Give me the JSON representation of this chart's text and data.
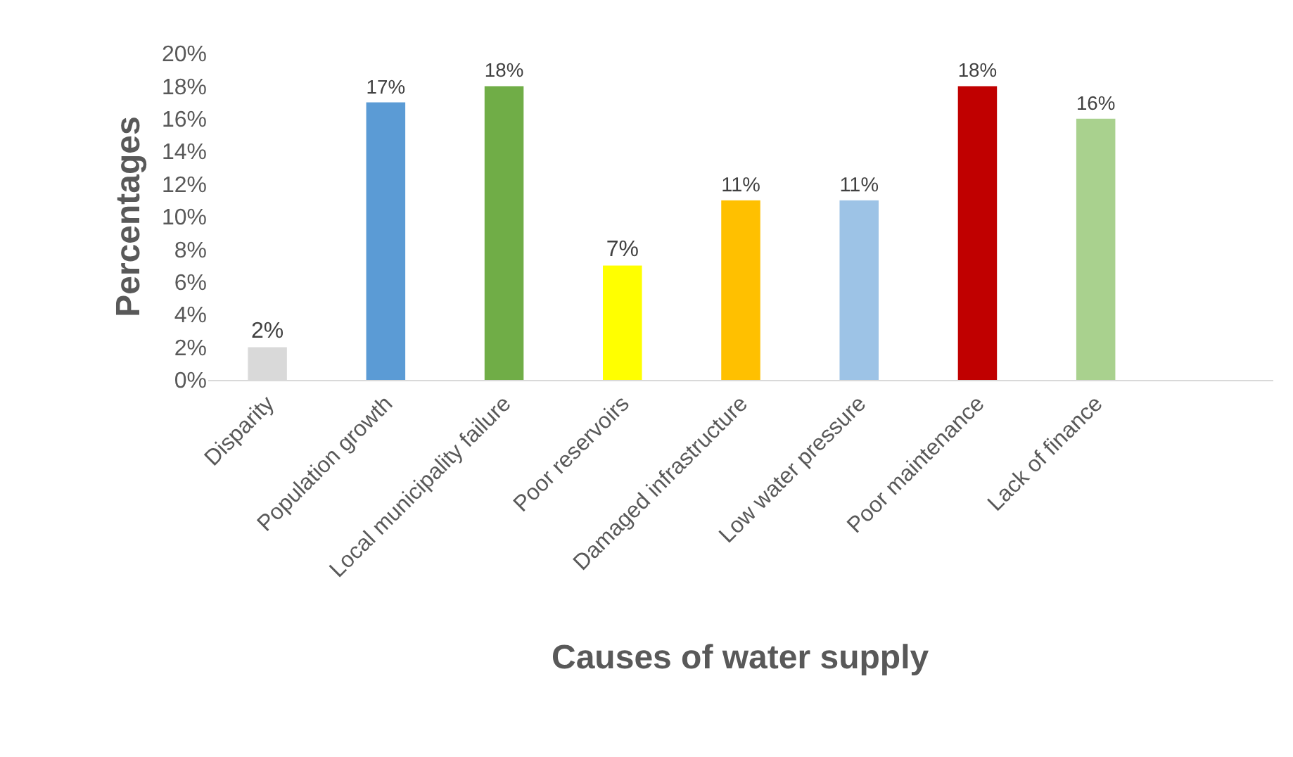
{
  "chart_data": {
    "type": "bar",
    "xlabel": "Causes of water supply",
    "ylabel": "Percentages",
    "categories": [
      "Disparity",
      "Population growth",
      "Local municipality failure",
      "Poor reservoirs",
      "Damaged infrastructure",
      "Low water pressure",
      "Poor maintenance",
      "Lack of finance",
      null
    ],
    "values": [
      2,
      17,
      18,
      7,
      11,
      11,
      18,
      16,
      null
    ],
    "value_labels": [
      "2%",
      "17%",
      "18%",
      "7%",
      "11%",
      "11%",
      "18%",
      "16%",
      null
    ],
    "colors": [
      "#d9d9d9",
      "#5b9bd5",
      "#70ad47",
      "#ffff00",
      "#ffc000",
      "#9dc3e6",
      "#c00000",
      "#a9d18e",
      "#ffffff"
    ],
    "ylim": [
      0,
      20
    ],
    "yticks": [
      {
        "value": 0,
        "label": "0%"
      },
      {
        "value": 2,
        "label": "2%"
      },
      {
        "value": 4,
        "label": "4%"
      },
      {
        "value": 6,
        "label": "6%"
      },
      {
        "value": 8,
        "label": "8%"
      },
      {
        "value": 10,
        "label": "10%"
      },
      {
        "value": 12,
        "label": "12%"
      },
      {
        "value": 14,
        "label": "14%"
      },
      {
        "value": 16,
        "label": "16%"
      },
      {
        "value": 18,
        "label": "18%"
      },
      {
        "value": 20,
        "label": "20%"
      }
    ]
  }
}
